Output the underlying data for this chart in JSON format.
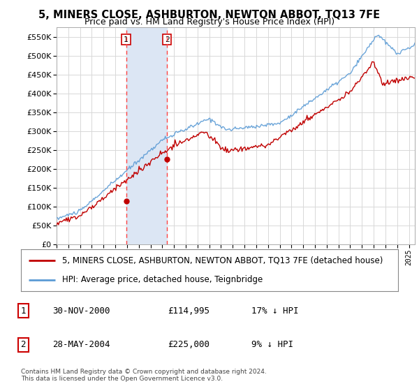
{
  "title": "5, MINERS CLOSE, ASHBURTON, NEWTON ABBOT, TQ13 7FE",
  "subtitle": "Price paid vs. HM Land Registry's House Price Index (HPI)",
  "legend_line1": "5, MINERS CLOSE, ASHBURTON, NEWTON ABBOT, TQ13 7FE (detached house)",
  "legend_line2": "HPI: Average price, detached house, Teignbridge",
  "footer": "Contains HM Land Registry data © Crown copyright and database right 2024.\nThis data is licensed under the Open Government Licence v3.0.",
  "table": [
    {
      "num": "1",
      "date": "30-NOV-2000",
      "price": "£114,995",
      "note": "17% ↓ HPI"
    },
    {
      "num": "2",
      "date": "28-MAY-2004",
      "price": "£225,000",
      "note": "9% ↓ HPI"
    }
  ],
  "sale1_x": 2000.92,
  "sale1_y": 114995,
  "sale2_x": 2004.41,
  "sale2_y": 225000,
  "vline1_x": 2000.92,
  "vline2_x": 2004.41,
  "highlight_xmin": 2000.92,
  "highlight_xmax": 2004.41,
  "xmin": 1995.0,
  "xmax": 2025.5,
  "ymin": 0,
  "ymax": 575000,
  "yticks": [
    0,
    50000,
    100000,
    150000,
    200000,
    250000,
    300000,
    350000,
    400000,
    450000,
    500000,
    550000
  ],
  "hpi_color": "#5b9bd5",
  "price_color": "#c00000",
  "vline_color": "#ff4444",
  "highlight_color": "#dce6f4",
  "grid_color": "#d8d8d8",
  "background_color": "#ffffff"
}
